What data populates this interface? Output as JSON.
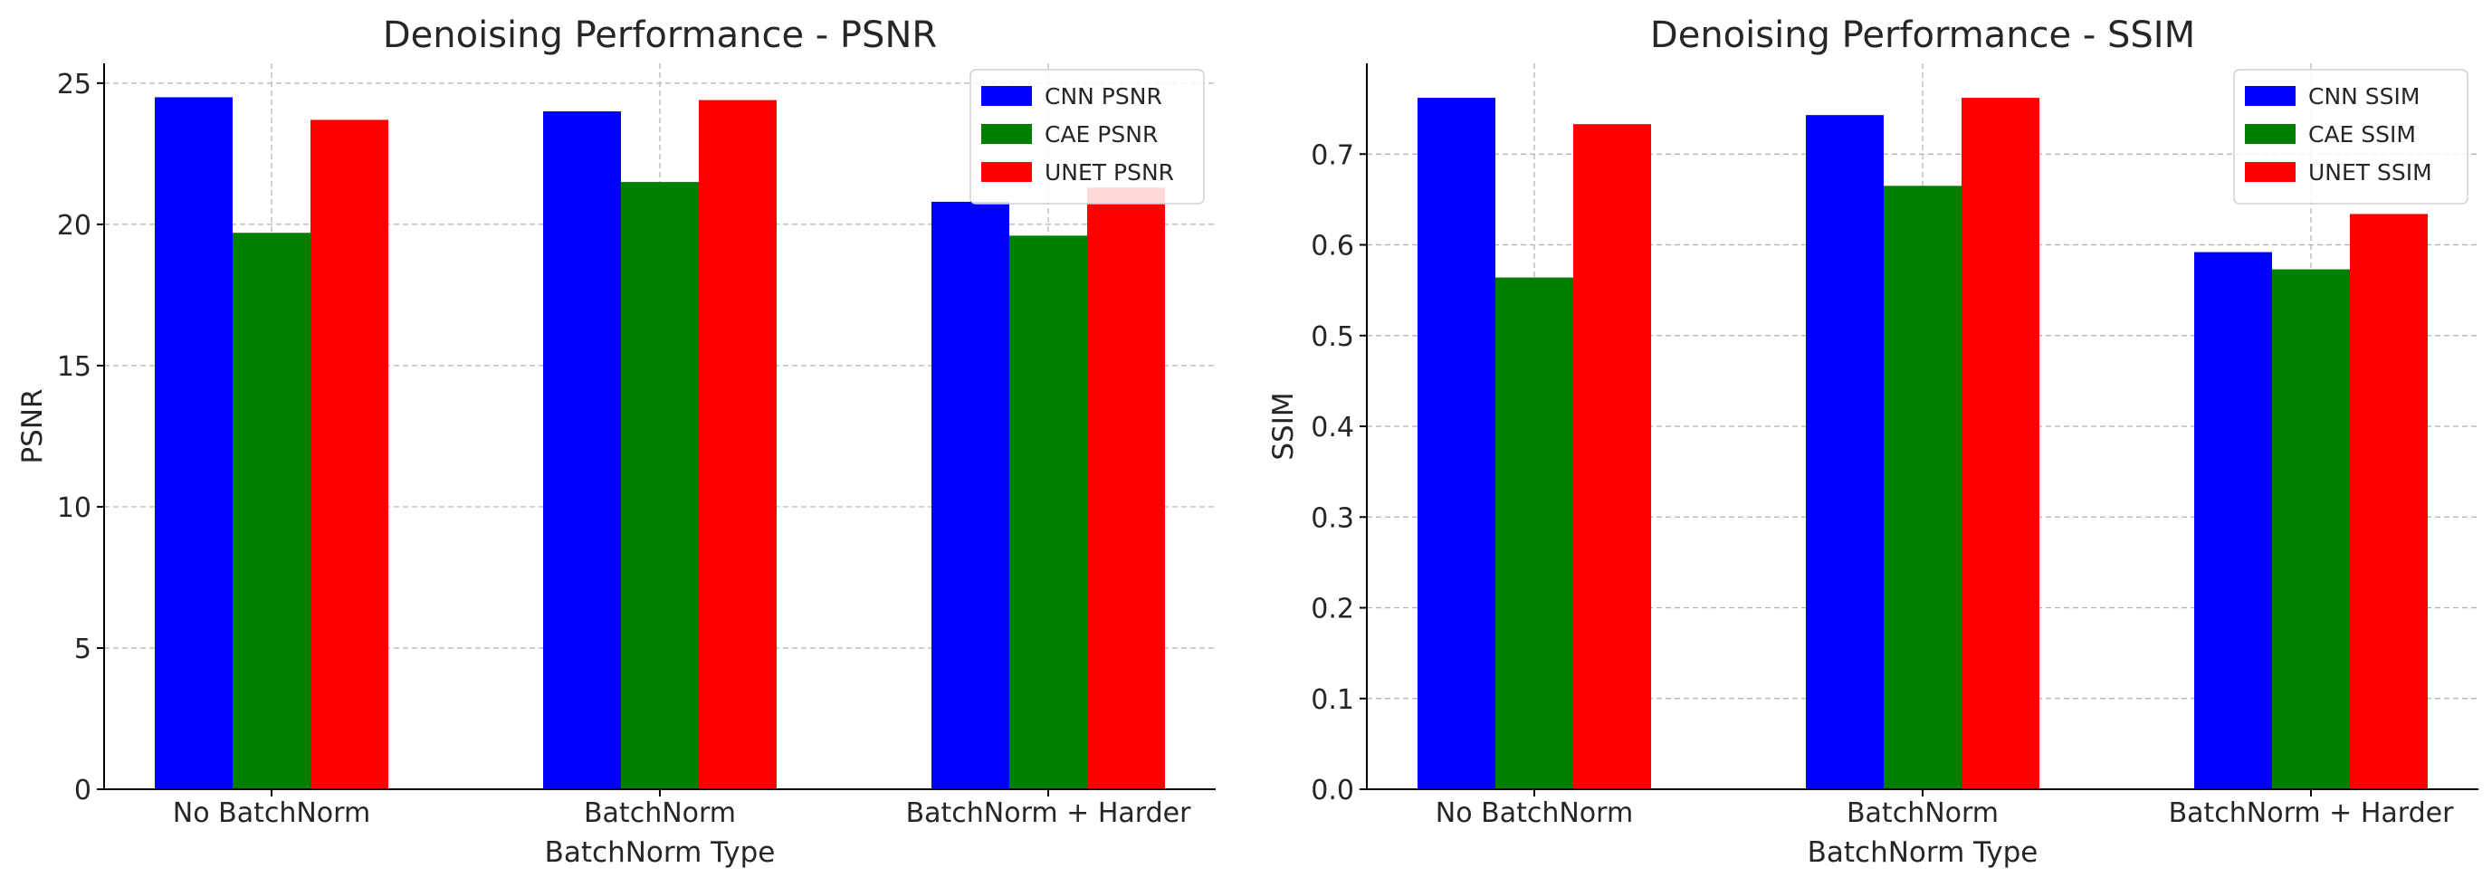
{
  "chart_data": [
    {
      "type": "bar",
      "title": "Denoising Performance - PSNR",
      "xlabel": "BatchNorm Type",
      "ylabel": "PSNR",
      "categories": [
        "No BatchNorm",
        "BatchNorm",
        "BatchNorm + Harder"
      ],
      "series": [
        {
          "name": "CNN PSNR",
          "color": "#0000ff",
          "values": [
            24.5,
            24.0,
            20.8
          ]
        },
        {
          "name": "CAE PSNR",
          "color": "#008000",
          "values": [
            19.7,
            21.5,
            19.6
          ]
        },
        {
          "name": "UNET PSNR",
          "color": "#ff0000",
          "values": [
            23.7,
            24.4,
            21.3
          ]
        }
      ],
      "ylim": [
        0,
        25.7
      ],
      "yticks": [
        "0",
        "5",
        "10",
        "15",
        "20",
        "25"
      ],
      "grid": true,
      "legend_position": "top-right"
    },
    {
      "type": "bar",
      "title": "Denoising Performance - SSIM",
      "xlabel": "BatchNorm Type",
      "ylabel": "SSIM",
      "categories": [
        "No BatchNorm",
        "BatchNorm",
        "BatchNorm + Harder"
      ],
      "series": [
        {
          "name": "CNN SSIM",
          "color": "#0000ff",
          "values": [
            0.762,
            0.743,
            0.592
          ]
        },
        {
          "name": "CAE SSIM",
          "color": "#008000",
          "values": [
            0.564,
            0.665,
            0.573
          ]
        },
        {
          "name": "UNET SSIM",
          "color": "#ff0000",
          "values": [
            0.733,
            0.762,
            0.634
          ]
        }
      ],
      "ylim": [
        0,
        0.8
      ],
      "yticks": [
        "0.0",
        "0.1",
        "0.2",
        "0.3",
        "0.4",
        "0.5",
        "0.6",
        "0.7"
      ],
      "grid": true,
      "legend_position": "top-right"
    }
  ]
}
